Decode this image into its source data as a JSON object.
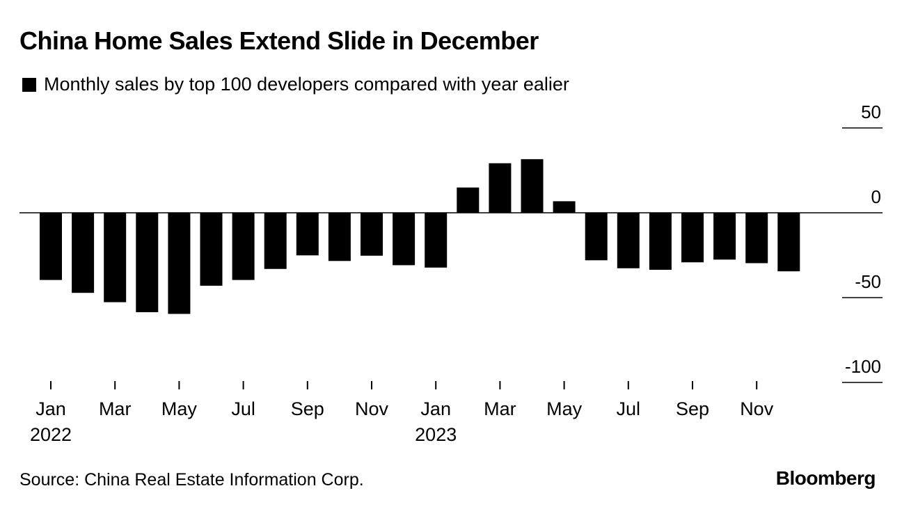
{
  "chart_data": {
    "type": "bar",
    "title": "China Home Sales Extend Slide in December",
    "legend": "Monthly sales by top 100 developers compared with year ealier",
    "categories": [
      "Jan 2022",
      "Feb 2022",
      "Mar 2022",
      "Apr 2022",
      "May 2022",
      "Jun 2022",
      "Jul 2022",
      "Aug 2022",
      "Sep 2022",
      "Oct 2022",
      "Nov 2022",
      "Dec 2022",
      "Jan 2023",
      "Feb 2023",
      "Mar 2023",
      "Apr 2023",
      "May 2023",
      "Jun 2023",
      "Jul 2023",
      "Aug 2023",
      "Sep 2023",
      "Oct 2023",
      "Nov 2023",
      "Dec 2023"
    ],
    "values": [
      -39.6,
      -47.2,
      -52.7,
      -58.6,
      -59.6,
      -43.0,
      -39.6,
      -33.1,
      -25.1,
      -28.4,
      -25.3,
      -30.9,
      -32.3,
      14.9,
      29.2,
      31.6,
      6.8,
      -28.0,
      -32.7,
      -33.6,
      -29.2,
      -27.6,
      -29.7,
      -34.5
    ],
    "ylim": [
      -100,
      50
    ],
    "yticks": [
      "50",
      "0",
      "-50",
      "-100"
    ],
    "ytick_values": [
      50,
      0,
      -50,
      -100
    ],
    "xtick_labels": [
      {
        "index": 0,
        "month": "Jan",
        "year": "2022"
      },
      {
        "index": 2,
        "month": "Mar",
        "year": ""
      },
      {
        "index": 4,
        "month": "May",
        "year": ""
      },
      {
        "index": 6,
        "month": "Jul",
        "year": ""
      },
      {
        "index": 8,
        "month": "Sep",
        "year": ""
      },
      {
        "index": 10,
        "month": "Nov",
        "year": ""
      },
      {
        "index": 12,
        "month": "Jan",
        "year": "2023"
      },
      {
        "index": 14,
        "month": "Mar",
        "year": ""
      },
      {
        "index": 16,
        "month": "May",
        "year": ""
      },
      {
        "index": 18,
        "month": "Jul",
        "year": ""
      },
      {
        "index": 20,
        "month": "Sep",
        "year": ""
      },
      {
        "index": 22,
        "month": "Nov",
        "year": ""
      }
    ],
    "xlabel": "",
    "ylabel": "",
    "bar_color": "#000000"
  },
  "footer": {
    "source": "Source: China Real Estate Information Corp.",
    "brand": "Bloomberg"
  }
}
